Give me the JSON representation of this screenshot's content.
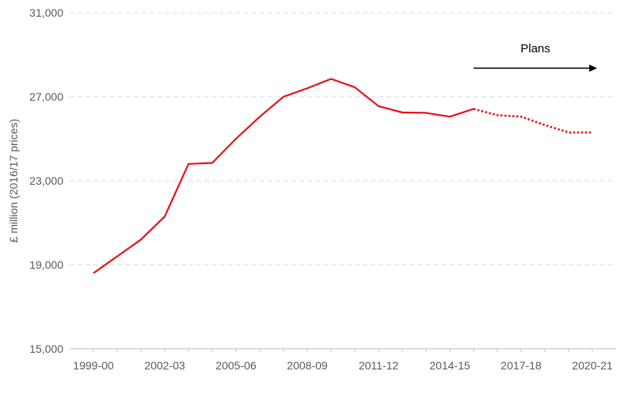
{
  "chart_data": {
    "type": "line",
    "title": "",
    "xlabel": "",
    "ylabel": "£ million (2016/17 prices)",
    "ylim": [
      15000,
      31000
    ],
    "yticks": [
      15000,
      19000,
      23000,
      27000,
      31000
    ],
    "ytick_labels": [
      "15,000",
      "19,000",
      "23,000",
      "27,000",
      "31,000"
    ],
    "x": [
      "1999-00",
      "2000-01",
      "2001-02",
      "2002-03",
      "2003-04",
      "2004-05",
      "2005-06",
      "2006-07",
      "2007-08",
      "2008-09",
      "2009-10",
      "2010-11",
      "2011-12",
      "2012-13",
      "2013-14",
      "2014-15",
      "2015-16",
      "2016-17",
      "2017-18",
      "2018-19",
      "2019-20",
      "2020-21"
    ],
    "xtick_labels": [
      "1999-00",
      "2002-03",
      "2005-06",
      "2008-09",
      "2011-12",
      "2014-15",
      "2017-18",
      "2020-21"
    ],
    "grid": true,
    "series": [
      {
        "name": "",
        "color": "#e8101a",
        "values": [
          18600,
          19400,
          20200,
          21300,
          23800,
          23850,
          25000,
          26050,
          27000,
          27400,
          27850,
          27450,
          26550,
          26250,
          26230,
          26050,
          26420,
          26120,
          26050,
          25650,
          25300,
          25300
        ],
        "actual_until_index": 16,
        "plans_style": "dotted"
      }
    ],
    "annotation": {
      "label": "Plans",
      "from_x": "2015-16",
      "to_x": "2020-21",
      "arrow_direction": "right"
    }
  }
}
